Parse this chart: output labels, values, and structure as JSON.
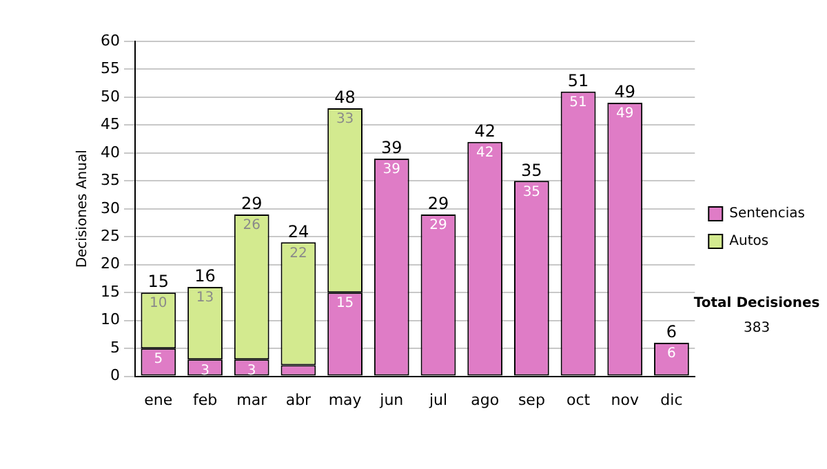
{
  "chart_data": {
    "type": "bar",
    "stacked": true,
    "ylabel": "Decisiones Anual",
    "categories": [
      "ene",
      "feb",
      "mar",
      "abr",
      "may",
      "jun",
      "jul",
      "ago",
      "sep",
      "oct",
      "nov",
      "dic"
    ],
    "series": [
      {
        "name": "Sentencias",
        "color": "#df7cc6",
        "values": [
          5,
          3,
          3,
          2,
          15,
          39,
          29,
          42,
          35,
          51,
          49,
          6
        ],
        "value_labels": [
          "5",
          "3",
          "3",
          null,
          "15",
          "39",
          "29",
          "42",
          "35",
          "51",
          "49",
          "6"
        ]
      },
      {
        "name": "Autos",
        "color": "#d3ea8f",
        "values": [
          10,
          13,
          26,
          22,
          33,
          0,
          0,
          0,
          0,
          0,
          0,
          0
        ],
        "value_labels": [
          "10",
          "13",
          "26",
          "22",
          "33",
          null,
          null,
          null,
          null,
          null,
          null,
          null
        ]
      }
    ],
    "totals": [
      "15",
      "16",
      "29",
      "24",
      "48",
      "39",
      "29",
      "42",
      "35",
      "51",
      "49",
      "6"
    ],
    "ylim": [
      0,
      60
    ],
    "yticks": [
      0,
      5,
      10,
      15,
      20,
      25,
      30,
      35,
      40,
      45,
      50,
      55,
      60
    ],
    "grid": "y",
    "legend": "right",
    "annotations": [
      "Total Decisiones",
      "383"
    ]
  }
}
